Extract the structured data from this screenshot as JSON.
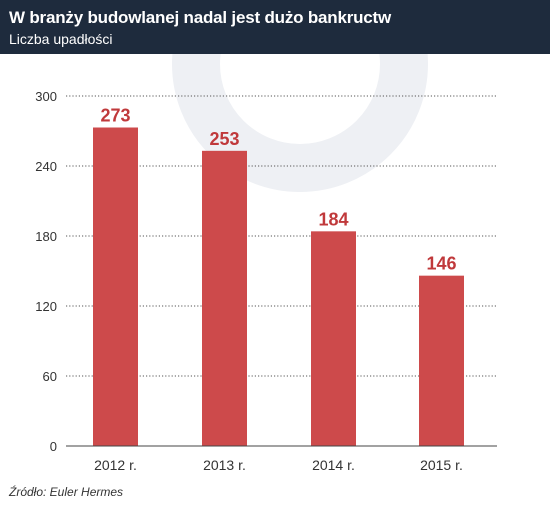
{
  "header": {
    "title": "W branży budowlanej nadal jest dużo bankructw",
    "subtitle": "Liczba upadłości"
  },
  "footer": {
    "source": "Źródło: Euler Hermes"
  },
  "colors": {
    "header_bg": "#1e2b3d",
    "bar": "#cd4a4b",
    "value_label": "#c0393b",
    "watermark": "#eef0f4"
  },
  "chart_data": {
    "type": "bar",
    "title": "W branży budowlanej nadal jest dużo bankructw",
    "subtitle": "Liczba upadłości",
    "categories": [
      "2012 r.",
      "2013 r.",
      "2014 r.",
      "2015 r."
    ],
    "values": [
      273,
      253,
      184,
      146
    ],
    "ylim": [
      0,
      300
    ],
    "yticks": [
      0,
      60,
      120,
      180,
      240,
      300
    ],
    "xlabel": "",
    "ylabel": "",
    "grid": true,
    "legend": "none",
    "data_labels": true
  }
}
